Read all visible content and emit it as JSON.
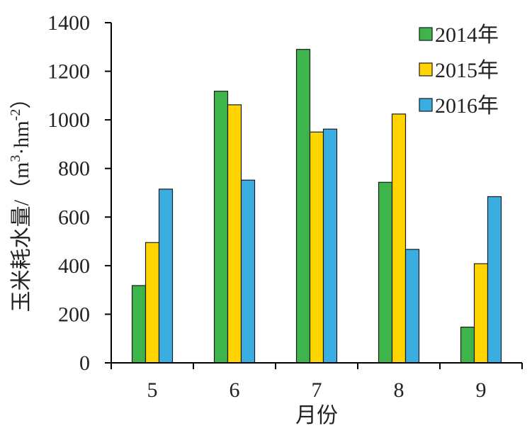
{
  "chart_data": {
    "type": "bar",
    "title": "",
    "xlabel": "月份",
    "ylabel_main": "玉米耗水量/（m",
    "ylabel_sup1": "3",
    "ylabel_mid": "·hm",
    "ylabel_sup2": "-2",
    "ylabel_end": "）",
    "categories": [
      "5",
      "6",
      "7",
      "8",
      "9"
    ],
    "ylim": [
      0,
      1400
    ],
    "yticks": [
      0,
      200,
      400,
      600,
      800,
      1000,
      1200,
      1400
    ],
    "grid": false,
    "legend_position": "top-right",
    "series": [
      {
        "name": "2014年",
        "color": "#3db54a",
        "values": [
          318,
          1118,
          1290,
          743,
          147
        ]
      },
      {
        "name": "2015年",
        "color": "#ffd400",
        "values": [
          495,
          1062,
          950,
          1024,
          408
        ]
      },
      {
        "name": "2016年",
        "color": "#3aaee3",
        "values": [
          715,
          752,
          962,
          467,
          684
        ]
      }
    ]
  }
}
